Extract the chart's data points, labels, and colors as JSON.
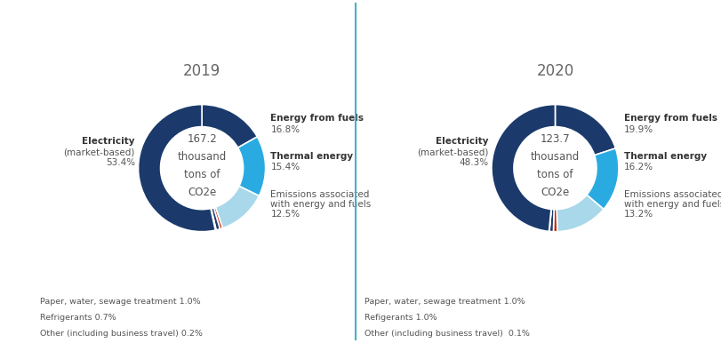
{
  "year_2019": {
    "title": "2019",
    "center_text": "167.2\nthousand\ntons of\nCO2e",
    "slices": [
      16.8,
      15.4,
      12.5,
      0.7,
      1.0,
      0.2,
      53.4
    ],
    "colors": [
      "#1b3a6b",
      "#29abe2",
      "#a8d8ea",
      "#cc2200",
      "#1b3a6b",
      "#1b3a6b",
      "#1b3a6b"
    ],
    "bottom_labels": [
      "Paper, water, sewage treatment 1.0%",
      "Refrigerants 0.7%",
      "Other (including business travel) 0.2%"
    ]
  },
  "year_2020": {
    "title": "2020",
    "center_text": "123.7\nthousand\ntons of\nCO2e",
    "slices": [
      19.9,
      16.2,
      13.2,
      1.0,
      1.0,
      0.1,
      48.3
    ],
    "colors": [
      "#1b3a6b",
      "#29abe2",
      "#a8d8ea",
      "#cc2200",
      "#1b3a6b",
      "#1b3a6b",
      "#1b3a6b"
    ],
    "bottom_labels": [
      "Paper, water, sewage treatment 1.0%",
      "Refigerants 1.0%",
      "Other (including business travel)  0.1%"
    ]
  },
  "background_color": "#ffffff",
  "divider_color": "#40b4c8",
  "label_color": "#555555",
  "bold_label_color": "#333333",
  "title_color": "#666666",
  "donut_width": 0.35,
  "startangle": 90
}
